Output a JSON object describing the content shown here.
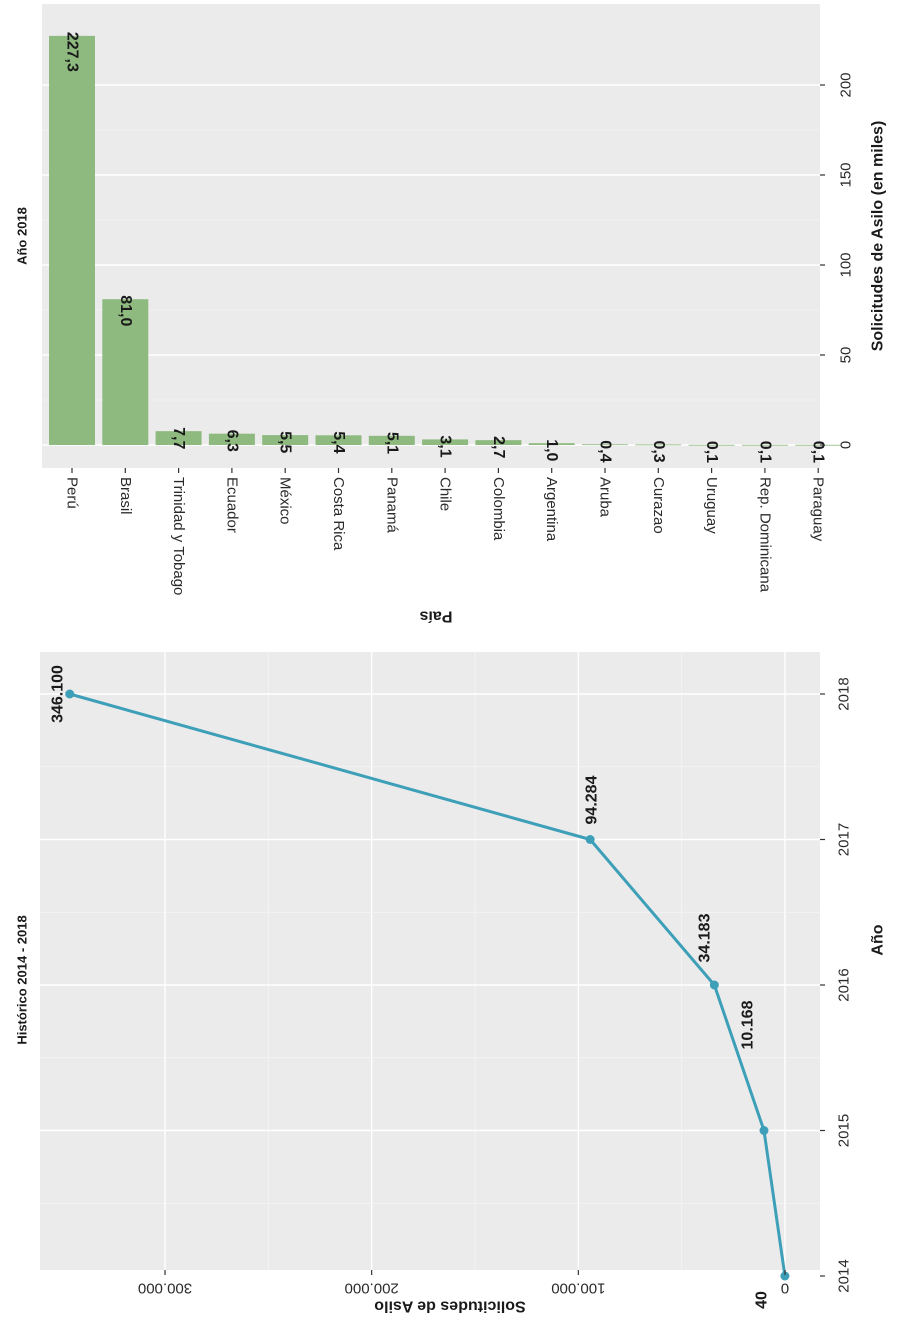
{
  "chart_data": [
    {
      "type": "bar",
      "title": "Año 2018",
      "xlabel": "País",
      "ylabel": "Solicitudes de Asilo (en miles)",
      "categories": [
        "Perú",
        "Brasil",
        "Trinidad y Tobago",
        "Ecuador",
        "México",
        "Costa Rica",
        "Panamá",
        "Chile",
        "Colombia",
        "Argentina",
        "Aruba",
        "Curazao",
        "Uruguay",
        "Rep. Dominicana",
        "Paraguay"
      ],
      "values": [
        227.3,
        81.0,
        7.7,
        6.3,
        5.5,
        5.4,
        5.1,
        3.1,
        2.7,
        1.0,
        0.4,
        0.3,
        0.1,
        0.1,
        0.1
      ],
      "data_labels": [
        "227,3",
        "81,0",
        "7,7",
        "6,3",
        "5,5",
        "5,4",
        "5,1",
        "3,1",
        "2,7",
        "1,0",
        "0,4",
        "0,3",
        "0,1",
        "0,1",
        "0,1"
      ],
      "ticks": [
        0,
        50,
        100,
        150,
        200
      ],
      "tick_labels": [
        "0",
        "50",
        "100",
        "150",
        "200"
      ],
      "ylim": [
        -3,
        238
      ],
      "bar_color": "#8fba7f",
      "grid": true,
      "orientation": "rotated 90° clockwise"
    },
    {
      "type": "line",
      "title": "Histórico 2014 - 2018",
      "xlabel": "Año",
      "ylabel": "Solicitudes de Asilo",
      "x": [
        2014,
        2015,
        2016,
        2017,
        2018
      ],
      "x_tick_labels": [
        "2014",
        "2015",
        "2016",
        "2017",
        "2018"
      ],
      "values": [
        40,
        10168,
        34183,
        94284,
        346100
      ],
      "data_labels": [
        "40",
        "10.168",
        "34.183",
        "94.284",
        "346.100"
      ],
      "ticks": [
        0,
        100000,
        200000,
        300000
      ],
      "tick_labels": [
        "0",
        "100.000",
        "200.000",
        "300.000"
      ],
      "ylim": [
        -5000,
        350000
      ],
      "line_color": "#3d9fb8",
      "grid": true,
      "orientation": "rotated 90° clockwise"
    }
  ]
}
